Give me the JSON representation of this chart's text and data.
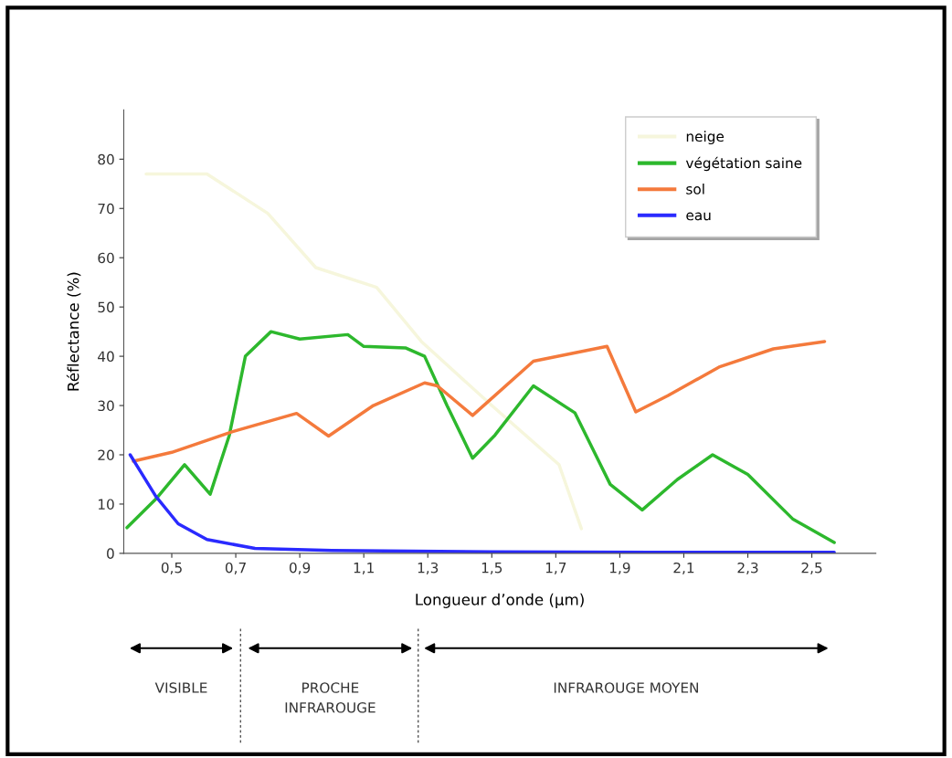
{
  "chart_data": {
    "type": "line",
    "xlabel": "Longueur d’onde (µm)",
    "ylabel": "Réflectance (%)",
    "xlim": [
      0.35,
      2.7
    ],
    "ylim": [
      0,
      90
    ],
    "xticks": [
      {
        "value": 0.5,
        "label": "0,5"
      },
      {
        "value": 0.7,
        "label": "0,7"
      },
      {
        "value": 0.9,
        "label": "0,9"
      },
      {
        "value": 1.1,
        "label": "1,1"
      },
      {
        "value": 1.3,
        "label": "1,3"
      },
      {
        "value": 1.5,
        "label": "1,5"
      },
      {
        "value": 1.7,
        "label": "1,7"
      },
      {
        "value": 1.9,
        "label": "1,9"
      },
      {
        "value": 2.1,
        "label": "2,1"
      },
      {
        "value": 2.3,
        "label": "2,3"
      },
      {
        "value": 2.5,
        "label": "2,5"
      }
    ],
    "yticks": [
      0,
      10,
      20,
      30,
      40,
      50,
      60,
      70,
      80
    ],
    "grid": false,
    "legend": "top right",
    "series": [
      {
        "name": "neige",
        "color": "#f6f6dc",
        "x": [
          0.42,
          0.61,
          0.8,
          0.95,
          1.14,
          1.28,
          1.5,
          1.71,
          1.78
        ],
        "values": [
          77,
          77,
          69,
          58,
          54,
          43,
          30,
          18,
          5
        ]
      },
      {
        "name": "végétation saine",
        "color": "#2db82d",
        "x": [
          0.36,
          0.45,
          0.54,
          0.62,
          0.68,
          0.73,
          0.81,
          0.9,
          1.05,
          1.1,
          1.23,
          1.29,
          1.36,
          1.44,
          1.51,
          1.63,
          1.76,
          1.87,
          1.97,
          2.08,
          2.19,
          2.3,
          2.44,
          2.57
        ],
        "values": [
          5.2,
          11,
          18,
          12,
          24,
          40,
          45,
          43.5,
          44.4,
          42,
          41.7,
          40,
          30,
          19.3,
          24,
          34,
          28.5,
          14,
          8.8,
          15,
          20,
          16,
          7,
          2.2
        ]
      },
      {
        "name": "sol",
        "color": "#f47a3c",
        "x": [
          0.38,
          0.5,
          0.69,
          0.89,
          0.99,
          1.13,
          1.29,
          1.33,
          1.44,
          1.63,
          1.86,
          1.95,
          2.05,
          2.21,
          2.38,
          2.54
        ],
        "values": [
          18.7,
          20.5,
          24.7,
          28.4,
          23.8,
          30,
          34.6,
          34,
          28,
          39,
          42,
          28.7,
          32,
          37.8,
          41.5,
          43
        ]
      },
      {
        "name": "eau",
        "color": "#2a2aff",
        "x": [
          0.37,
          0.45,
          0.52,
          0.61,
          0.76,
          1.0,
          1.5,
          2.0,
          2.57
        ],
        "values": [
          20,
          11.6,
          6,
          2.8,
          1,
          0.6,
          0.3,
          0.2,
          0.2
        ]
      }
    ],
    "annotations": [
      "VISIBLE",
      "PROCHE\nINFRAROUGE",
      "INFRAROUGE MOYEN"
    ]
  }
}
